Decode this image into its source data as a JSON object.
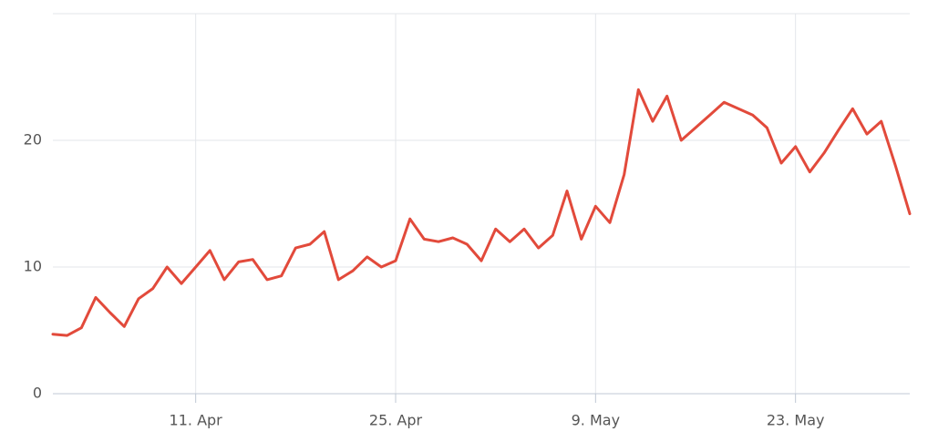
{
  "chart_data": {
    "type": "line",
    "x": [
      "1. Apr",
      "2. Apr",
      "3. Apr",
      "4. Apr",
      "5. Apr",
      "6. Apr",
      "7. Apr",
      "8. Apr",
      "9. Apr",
      "10. Apr",
      "11. Apr",
      "12. Apr",
      "13. Apr",
      "14. Apr",
      "15. Apr",
      "16. Apr",
      "17. Apr",
      "18. Apr",
      "19. Apr",
      "20. Apr",
      "21. Apr",
      "22. Apr",
      "23. Apr",
      "24. Apr",
      "25. Apr",
      "26. Apr",
      "27. Apr",
      "28. Apr",
      "29. Apr",
      "30. Apr",
      "1. May",
      "2. May",
      "3. May",
      "4. May",
      "5. May",
      "6. May",
      "7. May",
      "8. May",
      "9. May",
      "10. May",
      "11. May",
      "12. May",
      "13. May",
      "14. May",
      "15. May",
      "16. May",
      "17. May",
      "18. May",
      "19. May",
      "20. May",
      "21. May",
      "22. May",
      "23. May",
      "24. May",
      "25. May",
      "26. May",
      "27. May",
      "28. May",
      "29. May",
      "30. May",
      "31. May"
    ],
    "values": [
      4.7,
      4.6,
      5.2,
      7.6,
      6.4,
      5.3,
      7.5,
      8.3,
      10.0,
      8.7,
      10.0,
      11.3,
      9.0,
      10.4,
      10.6,
      9.0,
      9.3,
      11.5,
      11.8,
      12.8,
      9.0,
      9.7,
      10.8,
      10.0,
      10.5,
      13.8,
      12.2,
      12.0,
      12.3,
      11.8,
      10.5,
      13.0,
      12.0,
      13.0,
      11.5,
      12.5,
      16.0,
      12.2,
      14.8,
      13.5,
      17.3,
      24.0,
      21.5,
      23.5,
      20.0,
      21.0,
      22.0,
      23.0,
      22.5,
      22.0,
      21.0,
      18.2,
      19.5,
      17.5,
      19.0,
      20.8,
      22.5,
      20.5,
      21.5,
      18.0,
      14.2
    ],
    "color": "#e24a3b",
    "ylim": [
      0,
      30
    ],
    "yticks": [
      0,
      10,
      20
    ],
    "xticks": [
      "11. Apr",
      "25. Apr",
      "9. May",
      "23. May"
    ],
    "grid": true
  }
}
